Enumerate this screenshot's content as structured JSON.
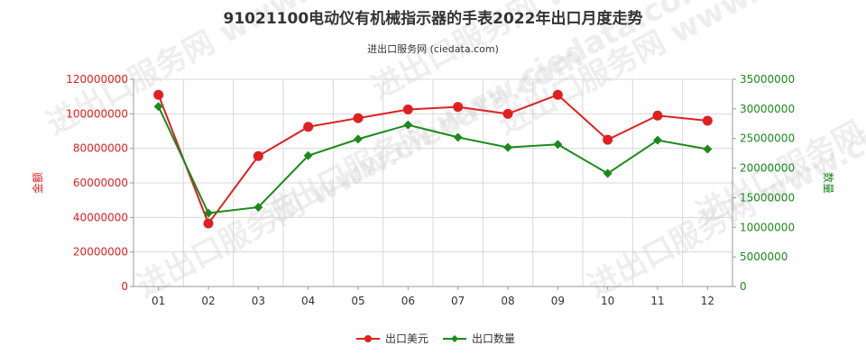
{
  "chart_data": {
    "type": "line",
    "title": "91021100电动仪有机械指示器的手表2022年出口月度走势",
    "subtitle": "进出口服务网 (ciedata.com)",
    "watermark": "进出口服务网 www.ciedata.com",
    "categories": [
      "01",
      "02",
      "03",
      "04",
      "05",
      "06",
      "07",
      "08",
      "09",
      "10",
      "11",
      "12"
    ],
    "left_axis": {
      "label": "金额",
      "min": 0,
      "max": 120000000,
      "step": 20000000,
      "ticks": [
        "0",
        "20000000",
        "40000000",
        "60000000",
        "80000000",
        "100000000",
        "120000000"
      ],
      "color": "#e02020"
    },
    "right_axis": {
      "label": "数量",
      "min": 0,
      "max": 35000000,
      "step": 5000000,
      "ticks": [
        "0",
        "5000000",
        "10000000",
        "15000000",
        "20000000",
        "25000000",
        "30000000",
        "35000000"
      ],
      "color": "#1a8a1a"
    },
    "grid": true,
    "legend_position": "bottom-center",
    "series": [
      {
        "name": "出口美元",
        "axis": "left",
        "color": "#e02020",
        "marker": "circle",
        "values": [
          111000000,
          36500000,
          75500000,
          92500000,
          97500000,
          102500000,
          104000000,
          100000000,
          111000000,
          85000000,
          99000000,
          96000000
        ]
      },
      {
        "name": "出口数量",
        "axis": "right",
        "color": "#1a8a1a",
        "marker": "diamond",
        "values": [
          30400000,
          12400000,
          13400000,
          22100000,
          24900000,
          27300000,
          25200000,
          23500000,
          24000000,
          19100000,
          24700000,
          23200000
        ]
      }
    ]
  }
}
